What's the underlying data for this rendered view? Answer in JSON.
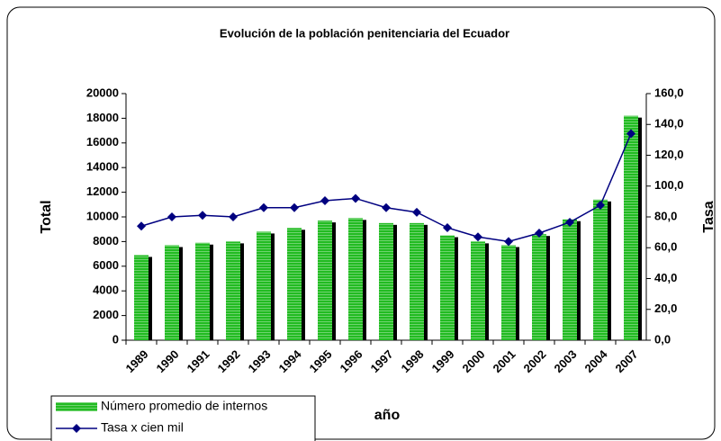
{
  "chart_data": {
    "type": "bar",
    "title": "Evolución de la población penitenciaria del Ecuador",
    "x_label": "año",
    "y_label": "Total",
    "y2_label": "Tasa",
    "categories": [
      "1989",
      "1990",
      "1991",
      "1992",
      "1993",
      "1994",
      "1995",
      "1996",
      "1997",
      "1998",
      "1999",
      "2000",
      "2001",
      "2002",
      "2003",
      "2004",
      "2007"
    ],
    "series": [
      {
        "name": "Número promedio de internos",
        "color": "#22bb22",
        "type": "bar",
        "values": [
          6900,
          7700,
          7900,
          8000,
          8800,
          9100,
          9700,
          9900,
          9500,
          9500,
          8500,
          8000,
          7700,
          8600,
          9800,
          11400,
          18200
        ]
      },
      {
        "name": "Tasa x cien mil",
        "color": "#000080",
        "type": "line",
        "axis": "y2",
        "values": [
          74,
          80,
          81,
          80,
          86,
          86,
          90.5,
          92,
          86,
          83,
          73,
          67,
          64,
          69.5,
          76.5,
          87.6,
          134
        ]
      }
    ],
    "ylim": [
      0,
      20000
    ],
    "yticks": [
      0,
      2000,
      4000,
      6000,
      8000,
      10000,
      12000,
      14000,
      16000,
      18000,
      20000
    ],
    "y2lim": [
      0,
      160
    ],
    "y2ticks": [
      {
        "value": 0,
        "label": "0,0"
      },
      {
        "value": 20,
        "label": "20,0"
      },
      {
        "value": 40,
        "label": "40,0"
      },
      {
        "value": 60,
        "label": "60,0"
      },
      {
        "value": 80,
        "label": "80,0"
      },
      {
        "value": 100,
        "label": "100,0"
      },
      {
        "value": 120,
        "label": "120,0"
      },
      {
        "value": 140,
        "label": "140,0"
      },
      {
        "value": 160,
        "label": "160,0"
      }
    ],
    "legend": "bottom-left"
  }
}
